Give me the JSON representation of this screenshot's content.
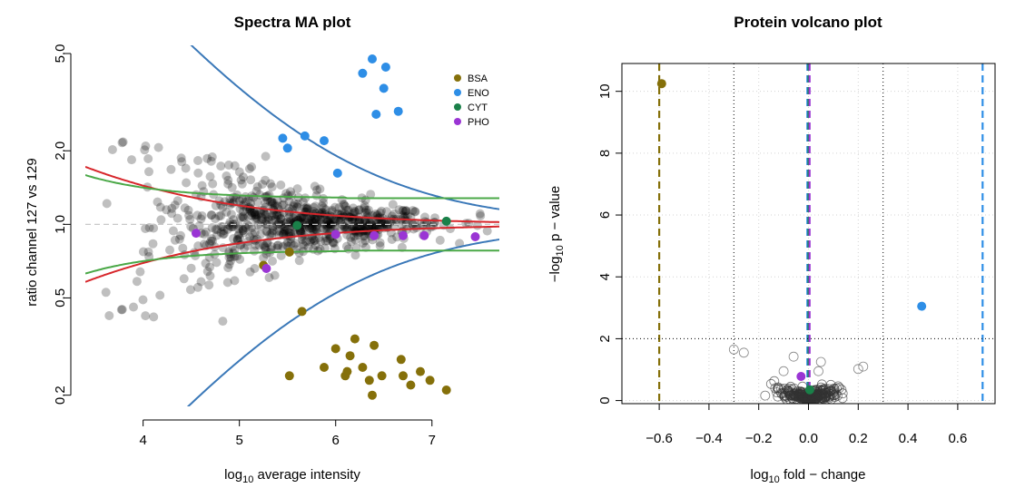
{
  "chart_data": [
    {
      "type": "scatter",
      "title": "Spectra MA plot",
      "xlabel": "log10 average intensity",
      "xlabel_parts": {
        "pre": "log",
        "sub": "10",
        "post": " average intensity"
      },
      "ylabel": "ratio channel 127 vs 129",
      "yscale": "log",
      "xlim": [
        3.4,
        7.7
      ],
      "ylim": [
        0.18,
        5.4
      ],
      "xticks": [
        4,
        5,
        6,
        7
      ],
      "xtick_labels": [
        "4",
        "5",
        "6",
        "7"
      ],
      "yticks": [
        0.2,
        0.5,
        1.0,
        2.0,
        5.0
      ],
      "ytick_labels": [
        "0.2",
        "0.5",
        "1.0",
        "2.0",
        "5.0"
      ],
      "legend_position": "top-right",
      "colors": {
        "BSA": "#85700a",
        "ENO": "#2e8ee6",
        "CYT": "#1a8049",
        "PHO": "#9a35d4",
        "background": "#000000",
        "blue_curve": "#3a78b8",
        "red_curve": "#d7262b",
        "green_curve": "#4aa847",
        "ref_line": "#bbbbbb"
      },
      "series": [
        {
          "name": "BSA",
          "points": [
            [
              5.52,
              0.77
            ],
            [
              5.65,
              0.44
            ],
            [
              5.52,
              0.24
            ],
            [
              5.88,
              0.26
            ],
            [
              6.0,
              0.31
            ],
            [
              6.1,
              0.24
            ],
            [
              6.12,
              0.25
            ],
            [
              6.15,
              0.29
            ],
            [
              6.2,
              0.34
            ],
            [
              6.28,
              0.26
            ],
            [
              6.35,
              0.23
            ],
            [
              6.4,
              0.32
            ],
            [
              6.38,
              0.2
            ],
            [
              6.48,
              0.24
            ],
            [
              6.68,
              0.28
            ],
            [
              6.7,
              0.24
            ],
            [
              6.78,
              0.22
            ],
            [
              6.88,
              0.25
            ],
            [
              6.98,
              0.23
            ],
            [
              7.15,
              0.21
            ],
            [
              5.25,
              0.68
            ]
          ]
        },
        {
          "name": "ENO",
          "points": [
            [
              5.45,
              2.25
            ],
            [
              5.5,
              2.05
            ],
            [
              5.68,
              2.3
            ],
            [
              5.88,
              2.2
            ],
            [
              6.02,
              1.62
            ],
            [
              6.28,
              4.15
            ],
            [
              6.38,
              4.75
            ],
            [
              6.52,
              4.4
            ],
            [
              6.5,
              3.6
            ],
            [
              6.42,
              2.82
            ],
            [
              6.65,
              2.9
            ]
          ]
        },
        {
          "name": "CYT",
          "points": [
            [
              5.6,
              0.99
            ],
            [
              7.15,
              1.03
            ]
          ]
        },
        {
          "name": "PHO",
          "points": [
            [
              4.55,
              0.92
            ],
            [
              5.28,
              0.66
            ],
            [
              6.0,
              0.91
            ],
            [
              6.4,
              0.9
            ],
            [
              6.7,
              0.9
            ],
            [
              6.92,
              0.9
            ],
            [
              7.45,
              0.89
            ]
          ]
        }
      ],
      "background_points": {
        "count": 760,
        "color": "#000000",
        "opacity": 0.25
      },
      "curves": [
        {
          "name": "blue_upper",
          "formula": "y = 1 + 14 * exp(-1.05*(x-3.4))"
        },
        {
          "name": "blue_lower",
          "formula": "y = 1 / (1 + 14 * exp(-1.05*(x-3.4)))"
        },
        {
          "name": "red_upper",
          "formula": "y = 1 + 0.72 * exp(-0.82*(x-3.4))"
        },
        {
          "name": "red_lower",
          "formula": "y = 1 / (1 + 0.72 * exp(-0.82*(x-3.4)))"
        },
        {
          "name": "green",
          "values": [
            1.28,
            0.78
          ]
        }
      ]
    },
    {
      "type": "scatter",
      "title": "Protein volcano plot",
      "xlabel": "log10 fold − change",
      "xlabel_parts": {
        "pre": "log",
        "sub": "10",
        "post": " fold − change"
      },
      "ylabel": "−log10 p − value",
      "ylabel_parts": {
        "pre": "−log",
        "sub": "10",
        "post": " p − value"
      },
      "xlim": [
        -0.75,
        0.75
      ],
      "ylim": [
        -0.1,
        10.9
      ],
      "xticks": [
        -0.6,
        -0.4,
        -0.2,
        0.0,
        0.2,
        0.4,
        0.6
      ],
      "xtick_labels": [
        "−0.6",
        "−0.4",
        "−0.2",
        "0.0",
        "0.2",
        "0.4",
        "0.6"
      ],
      "yticks": [
        0,
        2,
        4,
        6,
        8,
        10
      ],
      "ytick_labels": [
        "0",
        "2",
        "4",
        "6",
        "8",
        "10"
      ],
      "series": [
        {
          "name": "BSA",
          "points": [
            [
              -0.59,
              10.25
            ]
          ]
        },
        {
          "name": "ENO",
          "points": [
            [
              0.455,
              3.05
            ]
          ]
        },
        {
          "name": "CYT",
          "points": [
            [
              0.005,
              0.35
            ]
          ]
        },
        {
          "name": "PHO",
          "points": [
            [
              -0.03,
              0.78
            ]
          ]
        }
      ],
      "background_points": {
        "count": 260,
        "color": "#000000"
      },
      "outlier_points": [
        [
          -0.3,
          1.65
        ],
        [
          -0.26,
          1.55
        ],
        [
          -0.06,
          1.42
        ],
        [
          0.05,
          1.25
        ],
        [
          0.04,
          0.95
        ],
        [
          -0.1,
          0.95
        ],
        [
          0.2,
          1.02
        ],
        [
          0.22,
          1.1
        ]
      ],
      "vertical_lines": [
        {
          "x": -0.3,
          "style": "dotted",
          "color": "#000000"
        },
        {
          "x": 0.3,
          "style": "dotted",
          "color": "#000000"
        },
        {
          "x": -0.6,
          "style": "dashed",
          "color": "#85700a"
        },
        {
          "x": 0.0,
          "style": "dashed",
          "color": "#2e8ee6"
        },
        {
          "x": 0.0,
          "style": "dashed",
          "color": "#1a8049"
        },
        {
          "x": 0.0,
          "style": "dashed",
          "color": "#9a35d4"
        },
        {
          "x": 0.7,
          "style": "dashed",
          "color": "#2e8ee6"
        }
      ],
      "horizontal_lines": [
        {
          "y": 2,
          "style": "dotted",
          "color": "#000000"
        }
      ],
      "grid": true
    }
  ]
}
